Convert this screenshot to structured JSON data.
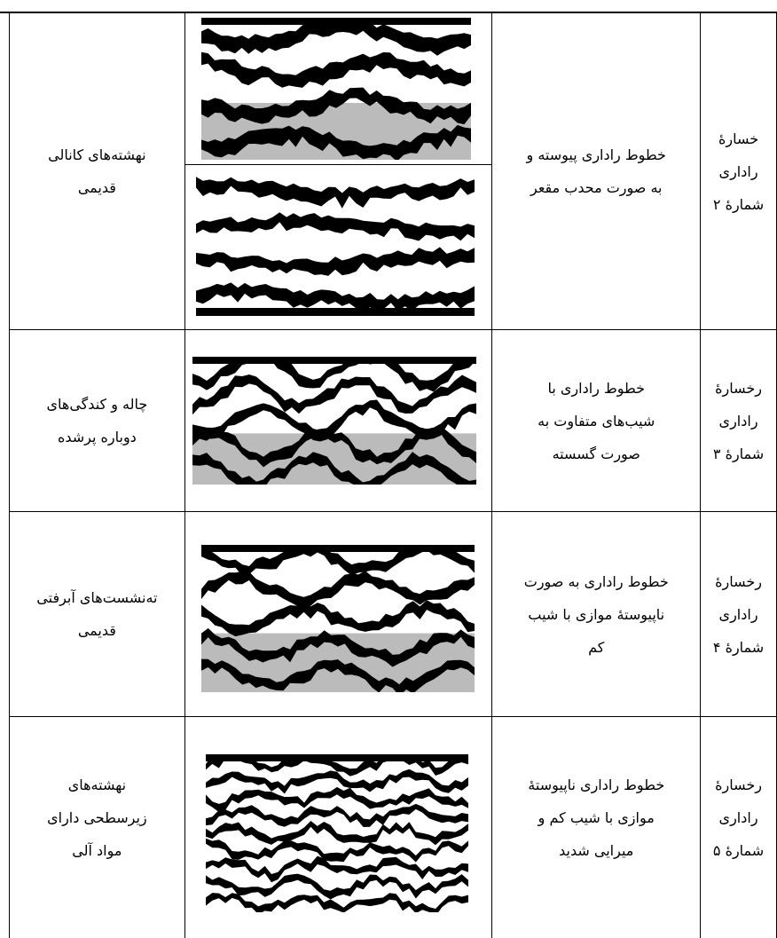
{
  "table": {
    "rows": [
      {
        "label": [
          "خسارهٔ",
          "راداری",
          "شمارهٔ ۲"
        ],
        "description": [
          "خطوط راداری پیوسته و",
          "به صورت محدب مقعر"
        ],
        "interpretation": [
          "نهشته‌های کانالی",
          "قدیمی"
        ]
      },
      {
        "label": [
          "رخسارهٔ",
          "راداری",
          "شمارهٔ ۳"
        ],
        "description": [
          "خطوط راداری با",
          "شیب‌های متفاوت به",
          "صورت گسسته"
        ],
        "interpretation": [
          "چاله و کندگی‌های",
          "دوباره پرشده"
        ]
      },
      {
        "label": [
          "رخسارهٔ",
          "راداری",
          "شمارهٔ ۴"
        ],
        "description": [
          "خطوط راداری به صورت",
          "ناپیوستهٔ موازی با شیب",
          "کم"
        ],
        "interpretation": [
          "ته‌نشست‌های آبرفتی",
          "قدیمی"
        ]
      },
      {
        "label": [
          "رخسارهٔ",
          "راداری",
          "شمارهٔ ۵"
        ],
        "description": [
          "خطوط راداری ناپیوستهٔ",
          "موازی با شیب کم و",
          "میرایی شدید"
        ],
        "interpretation": [
          "نهشته‌های",
          "زیرسطحی دارای",
          "مواد آلی"
        ]
      }
    ]
  }
}
